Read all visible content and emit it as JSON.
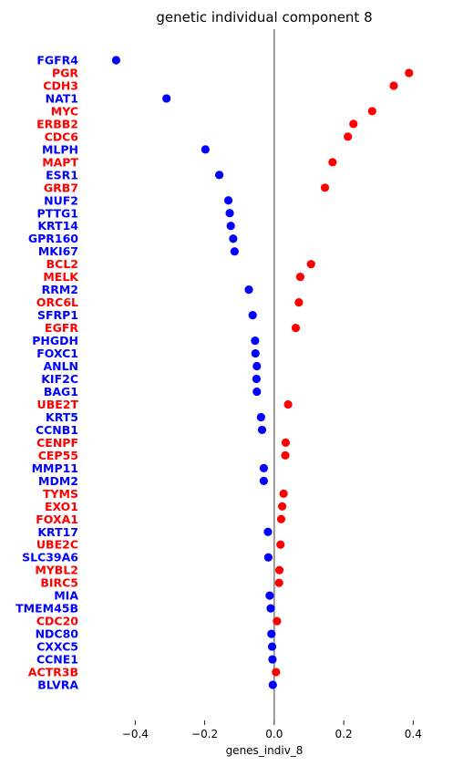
{
  "chart_data": {
    "type": "scatter",
    "title": "genetic individual component 8",
    "xlabel": "genes_indiv_8",
    "ylabel": "",
    "xlim": [
      -0.54,
      0.47
    ],
    "xticks": [
      -0.4,
      -0.2,
      0.0,
      0.2,
      0.4
    ],
    "xtick_labels": [
      "−0.4",
      "−0.2",
      "0.0",
      "0.2",
      "0.4"
    ],
    "zero_line": true,
    "grid": false,
    "colors": {
      "negative": "#0000ff",
      "positive": "#ff0000",
      "zero_line": "#808080"
    },
    "points": [
      {
        "gene": "FGFR4",
        "value": -0.455,
        "color": "#0000ff"
      },
      {
        "gene": "PGR",
        "value": 0.388,
        "color": "#ff0000"
      },
      {
        "gene": "CDH3",
        "value": 0.344,
        "color": "#ff0000"
      },
      {
        "gene": "NAT1",
        "value": -0.31,
        "color": "#0000ff"
      },
      {
        "gene": "MYC",
        "value": 0.282,
        "color": "#ff0000"
      },
      {
        "gene": "ERBB2",
        "value": 0.228,
        "color": "#ff0000"
      },
      {
        "gene": "CDC6",
        "value": 0.212,
        "color": "#ff0000"
      },
      {
        "gene": "MLPH",
        "value": -0.198,
        "color": "#0000ff"
      },
      {
        "gene": "MAPT",
        "value": 0.168,
        "color": "#ff0000"
      },
      {
        "gene": "ESR1",
        "value": -0.158,
        "color": "#0000ff"
      },
      {
        "gene": "GRB7",
        "value": 0.146,
        "color": "#ff0000"
      },
      {
        "gene": "NUF2",
        "value": -0.132,
        "color": "#0000ff"
      },
      {
        "gene": "PTTG1",
        "value": -0.128,
        "color": "#0000ff"
      },
      {
        "gene": "KRT14",
        "value": -0.125,
        "color": "#0000ff"
      },
      {
        "gene": "GPR160",
        "value": -0.118,
        "color": "#0000ff"
      },
      {
        "gene": "MKI67",
        "value": -0.114,
        "color": "#0000ff"
      },
      {
        "gene": "BCL2",
        "value": 0.106,
        "color": "#ff0000"
      },
      {
        "gene": "MELK",
        "value": 0.075,
        "color": "#ff0000"
      },
      {
        "gene": "RRM2",
        "value": -0.073,
        "color": "#0000ff"
      },
      {
        "gene": "ORC6L",
        "value": 0.071,
        "color": "#ff0000"
      },
      {
        "gene": "SFRP1",
        "value": -0.062,
        "color": "#0000ff"
      },
      {
        "gene": "EGFR",
        "value": 0.062,
        "color": "#ff0000"
      },
      {
        "gene": "PHGDH",
        "value": -0.055,
        "color": "#0000ff"
      },
      {
        "gene": "FOXC1",
        "value": -0.054,
        "color": "#0000ff"
      },
      {
        "gene": "ANLN",
        "value": -0.05,
        "color": "#0000ff"
      },
      {
        "gene": "KIF2C",
        "value": -0.051,
        "color": "#0000ff"
      },
      {
        "gene": "BAG1",
        "value": -0.05,
        "color": "#0000ff"
      },
      {
        "gene": "UBE2T",
        "value": 0.04,
        "color": "#ff0000"
      },
      {
        "gene": "KRT5",
        "value": -0.038,
        "color": "#0000ff"
      },
      {
        "gene": "CCNB1",
        "value": -0.035,
        "color": "#0000ff"
      },
      {
        "gene": "CENPF",
        "value": 0.033,
        "color": "#ff0000"
      },
      {
        "gene": "CEP55",
        "value": 0.032,
        "color": "#ff0000"
      },
      {
        "gene": "MMP11",
        "value": -0.03,
        "color": "#0000ff"
      },
      {
        "gene": "MDM2",
        "value": -0.03,
        "color": "#0000ff"
      },
      {
        "gene": "TYMS",
        "value": 0.027,
        "color": "#ff0000"
      },
      {
        "gene": "EXO1",
        "value": 0.023,
        "color": "#ff0000"
      },
      {
        "gene": "FOXA1",
        "value": 0.02,
        "color": "#ff0000"
      },
      {
        "gene": "KRT17",
        "value": -0.018,
        "color": "#0000ff"
      },
      {
        "gene": "UBE2C",
        "value": 0.018,
        "color": "#ff0000"
      },
      {
        "gene": "SLC39A6",
        "value": -0.017,
        "color": "#0000ff"
      },
      {
        "gene": "MYBL2",
        "value": 0.015,
        "color": "#ff0000"
      },
      {
        "gene": "BIRC5",
        "value": 0.014,
        "color": "#ff0000"
      },
      {
        "gene": "MIA",
        "value": -0.013,
        "color": "#0000ff"
      },
      {
        "gene": "TMEM45B",
        "value": -0.01,
        "color": "#0000ff"
      },
      {
        "gene": "CDC20",
        "value": 0.008,
        "color": "#ff0000"
      },
      {
        "gene": "NDC80",
        "value": -0.008,
        "color": "#0000ff"
      },
      {
        "gene": "CXXC5",
        "value": -0.006,
        "color": "#0000ff"
      },
      {
        "gene": "CCNE1",
        "value": -0.005,
        "color": "#0000ff"
      },
      {
        "gene": "ACTR3B",
        "value": 0.005,
        "color": "#ff0000"
      },
      {
        "gene": "BLVRA",
        "value": -0.004,
        "color": "#0000ff"
      }
    ]
  }
}
